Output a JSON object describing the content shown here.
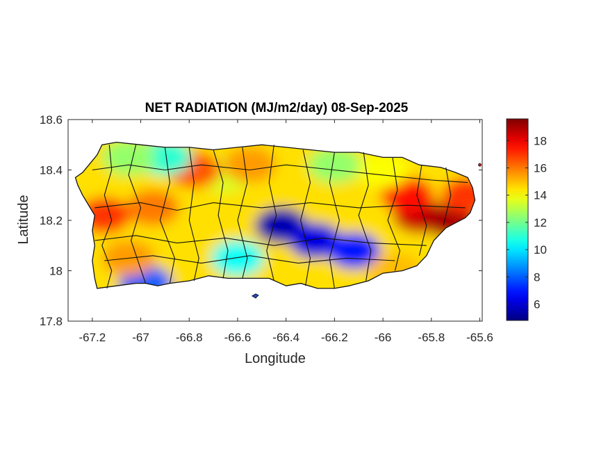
{
  "figure": {
    "title": "NET RADIATION (MJ/m2/day) 08-Sep-2025",
    "xlabel": "Longitude",
    "ylabel": "Latitude"
  },
  "chart_data": {
    "type": "heatmap",
    "title": "NET RADIATION (MJ/m2/day) 08-Sep-2025",
    "xlabel": "Longitude",
    "ylabel": "Latitude",
    "xlim": [
      -67.3,
      -65.59
    ],
    "ylim": [
      17.8,
      18.6
    ],
    "xticks": [
      -67.2,
      -67,
      -66.8,
      -66.6,
      -66.4,
      -66.2,
      -66,
      -65.8,
      -65.6
    ],
    "xtick_labels": [
      "-67.2",
      "-67",
      "-66.8",
      "-66.6",
      "-66.4",
      "-66.2",
      "-66",
      "-65.8",
      "-65.6"
    ],
    "yticks": [
      17.8,
      18,
      18.2,
      18.4,
      18.6
    ],
    "ytick_labels": [
      "17.8",
      "18",
      "18.2",
      "18.4",
      "18.6"
    ],
    "grid": false,
    "colormap": "jet",
    "colorbar": {
      "range": [
        4.8,
        19.6
      ],
      "ticks": [
        6,
        8,
        10,
        12,
        14,
        16,
        18
      ],
      "tick_labels": [
        "6",
        "8",
        "10",
        "12",
        "14",
        "16",
        "18"
      ]
    },
    "field_hotspots": [
      {
        "lon": -66.42,
        "lat": 18.18,
        "value": 5.5
      },
      {
        "lon": -66.28,
        "lat": 18.12,
        "value": 6.2
      },
      {
        "lon": -66.12,
        "lat": 18.08,
        "value": 7.0
      },
      {
        "lon": -66.98,
        "lat": 17.95,
        "value": 8.0
      },
      {
        "lon": -66.6,
        "lat": 18.05,
        "value": 10.5
      },
      {
        "lon": -66.65,
        "lat": 18.38,
        "value": 13.5
      },
      {
        "lon": -67.15,
        "lat": 18.22,
        "value": 17.0
      },
      {
        "lon": -66.95,
        "lat": 18.25,
        "value": 16.0
      },
      {
        "lon": -67.05,
        "lat": 18.05,
        "value": 15.5
      },
      {
        "lon": -66.78,
        "lat": 18.4,
        "value": 16.5
      },
      {
        "lon": -66.55,
        "lat": 18.42,
        "value": 15.5
      },
      {
        "lon": -66.9,
        "lat": 18.45,
        "value": 11.0
      },
      {
        "lon": -67.05,
        "lat": 18.45,
        "value": 12.5
      },
      {
        "lon": -65.85,
        "lat": 18.22,
        "value": 18.5
      },
      {
        "lon": -65.9,
        "lat": 18.3,
        "value": 17.5
      },
      {
        "lon": -65.72,
        "lat": 18.2,
        "value": 19.0
      },
      {
        "lon": -65.65,
        "lat": 18.3,
        "value": 17.0
      },
      {
        "lon": -66.0,
        "lat": 18.4,
        "value": 14.0
      },
      {
        "lon": -66.2,
        "lat": 18.42,
        "value": 12.5
      },
      {
        "lon": -65.95,
        "lat": 18.0,
        "value": 15.0
      }
    ]
  },
  "colors": {
    "background": "#ffffff",
    "axes_edge": "#262626",
    "boundary": "#111111"
  }
}
